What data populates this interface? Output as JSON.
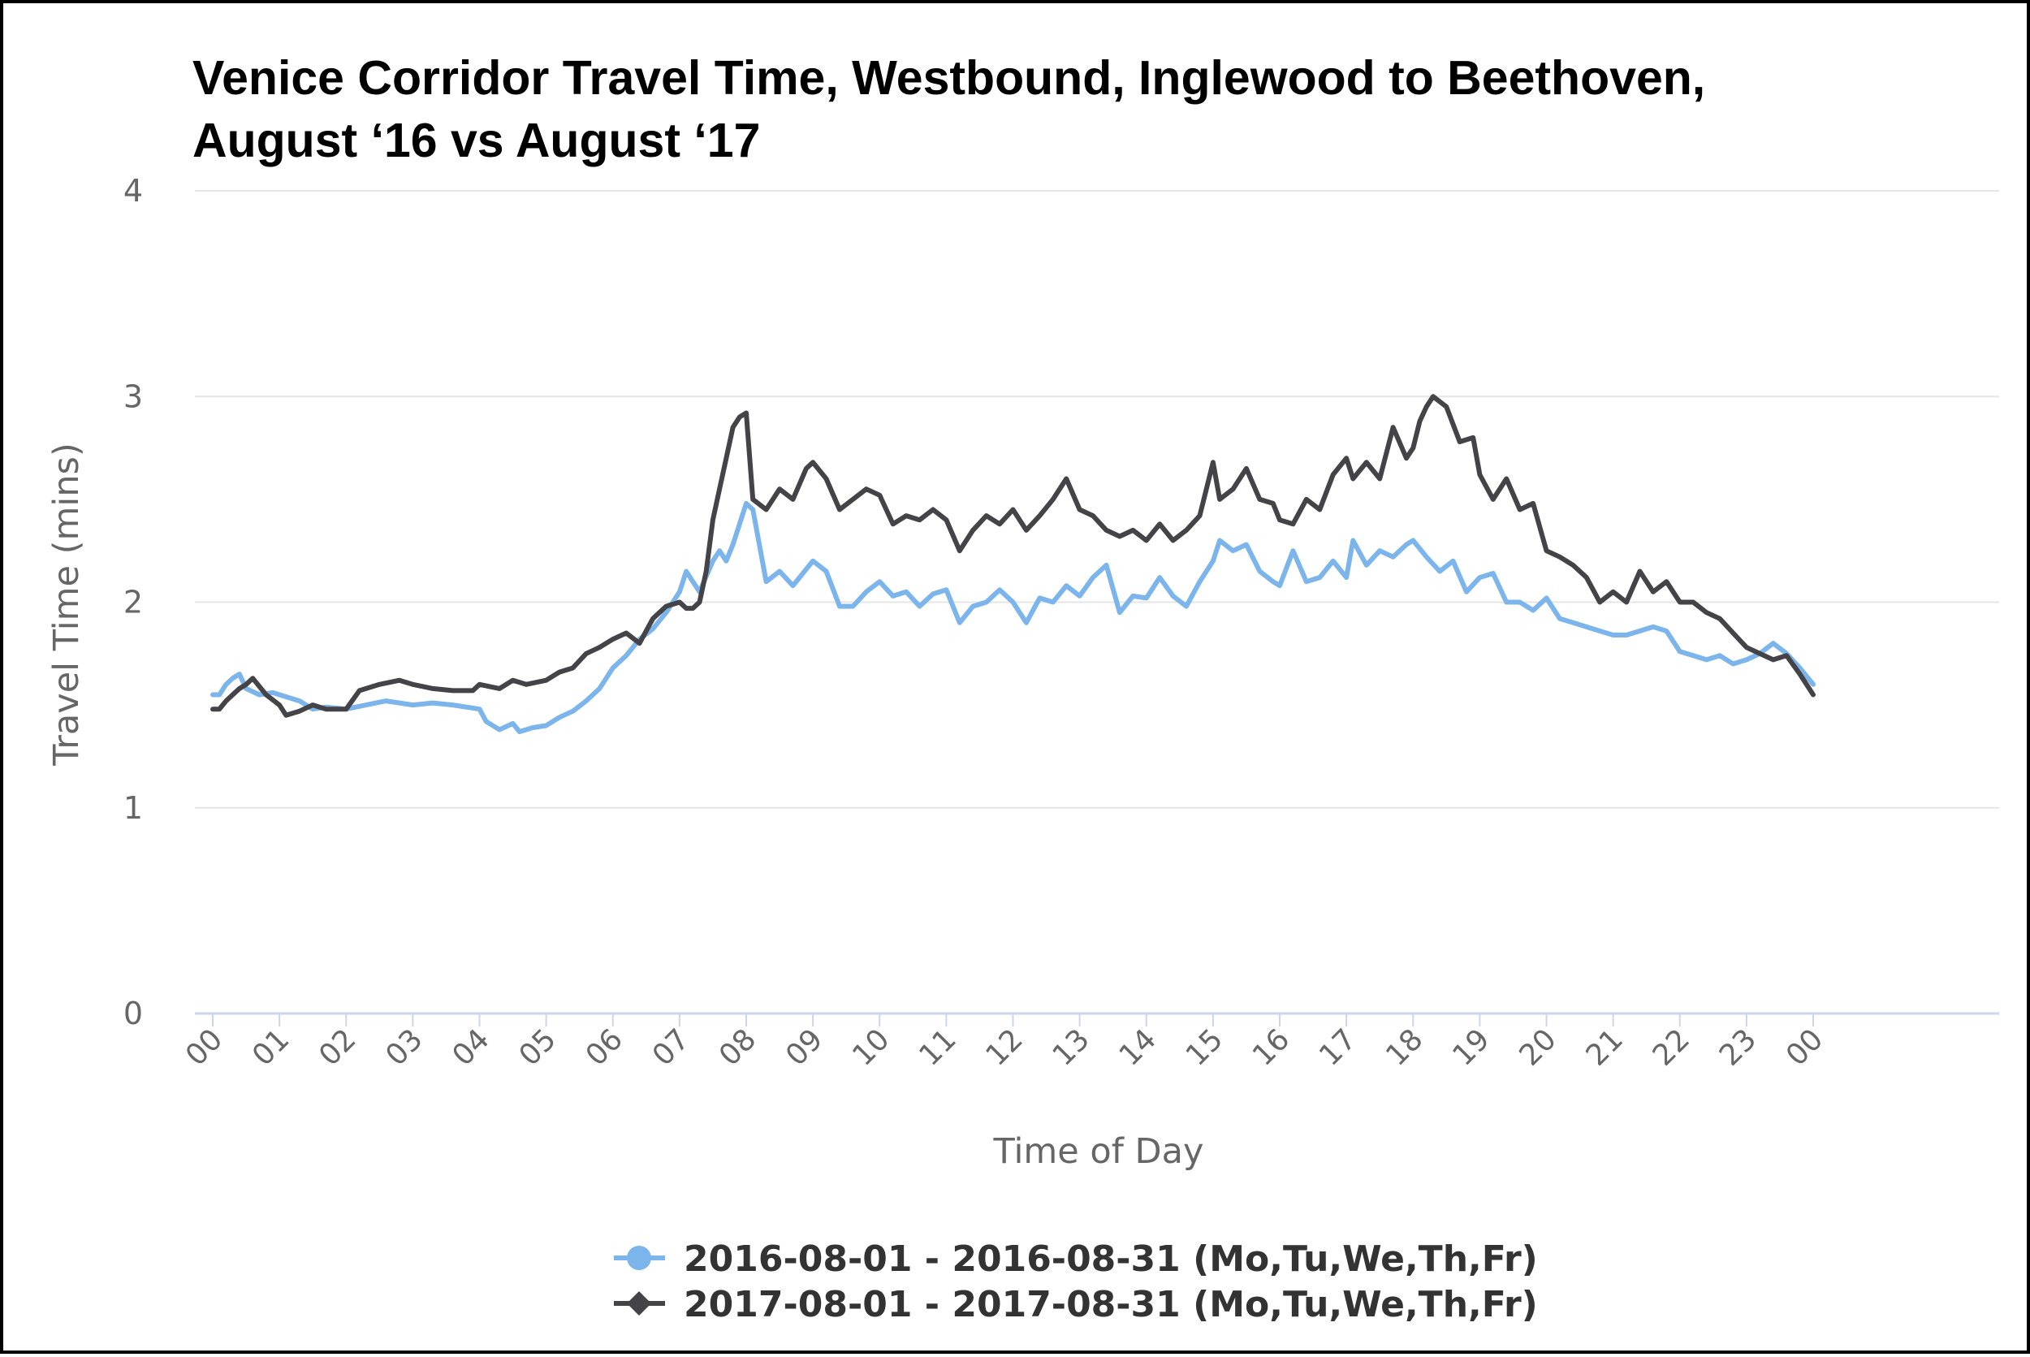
{
  "chart_data": {
    "type": "line",
    "title": "Venice Corridor Travel Time, Westbound, Inglewood to Beethoven,",
    "subtitle": "August ‘16 vs August ‘17",
    "xlabel": "Time of Day",
    "ylabel": "Travel Time (mins)",
    "ylim": [
      0,
      4
    ],
    "yticks": [
      "0",
      "1",
      "2",
      "3",
      "4"
    ],
    "xlim": [
      0,
      24
    ],
    "xticks": [
      "00",
      "01",
      "02",
      "03",
      "04",
      "05",
      "06",
      "07",
      "08",
      "09",
      "10",
      "11",
      "12",
      "13",
      "14",
      "15",
      "16",
      "17",
      "18",
      "19",
      "20",
      "21",
      "22",
      "23",
      "00"
    ],
    "grid": true,
    "legend_position": "bottom",
    "series": [
      {
        "name": "2016-08-01 - 2016-08-31 (Mo,Tu,We,Th,Fr)",
        "color": "#7cb5ec",
        "marker": "circle",
        "x": [
          0,
          0.1,
          0.2,
          0.3,
          0.4,
          0.5,
          0.7,
          0.9,
          1.1,
          1.3,
          1.5,
          1.7,
          2,
          2.3,
          2.6,
          3,
          3.3,
          3.6,
          4,
          4.1,
          4.3,
          4.5,
          4.6,
          4.8,
          5,
          5.2,
          5.4,
          5.6,
          5.8,
          6,
          6.2,
          6.4,
          6.6,
          6.8,
          7,
          7.1,
          7.2,
          7.3,
          7.5,
          7.6,
          7.7,
          7.8,
          7.9,
          8,
          8.1,
          8.3,
          8.5,
          8.7,
          9,
          9.2,
          9.4,
          9.6,
          9.8,
          10,
          10.2,
          10.4,
          10.6,
          10.8,
          11,
          11.2,
          11.4,
          11.6,
          11.8,
          12,
          12.2,
          12.4,
          12.6,
          12.8,
          13,
          13.2,
          13.4,
          13.6,
          13.8,
          14,
          14.2,
          14.4,
          14.6,
          14.8,
          15,
          15.1,
          15.3,
          15.5,
          15.7,
          15.9,
          16,
          16.2,
          16.4,
          16.6,
          16.8,
          17,
          17.1,
          17.3,
          17.5,
          17.7,
          17.9,
          18,
          18.2,
          18.4,
          18.6,
          18.8,
          19,
          19.2,
          19.4,
          19.6,
          19.8,
          20,
          20.2,
          20.4,
          20.6,
          20.8,
          21,
          21.2,
          21.4,
          21.6,
          21.8,
          22,
          22.2,
          22.4,
          22.6,
          22.8,
          23,
          23.2,
          23.4,
          23.6,
          23.8,
          24
        ],
        "y": [
          1.55,
          1.55,
          1.6,
          1.63,
          1.65,
          1.58,
          1.55,
          1.56,
          1.54,
          1.52,
          1.48,
          1.49,
          1.48,
          1.5,
          1.52,
          1.5,
          1.51,
          1.5,
          1.48,
          1.42,
          1.38,
          1.41,
          1.37,
          1.39,
          1.4,
          1.44,
          1.47,
          1.52,
          1.58,
          1.68,
          1.74,
          1.82,
          1.87,
          1.95,
          2.05,
          2.15,
          2.1,
          2.05,
          2.2,
          2.25,
          2.2,
          2.28,
          2.38,
          2.48,
          2.45,
          2.1,
          2.15,
          2.08,
          2.2,
          2.15,
          1.98,
          1.98,
          2.05,
          2.1,
          2.03,
          2.05,
          1.98,
          2.04,
          2.06,
          1.9,
          1.98,
          2.0,
          2.06,
          2.0,
          1.9,
          2.02,
          2.0,
          2.08,
          2.03,
          2.12,
          2.18,
          1.95,
          2.03,
          2.02,
          2.12,
          2.03,
          1.98,
          2.1,
          2.2,
          2.3,
          2.25,
          2.28,
          2.15,
          2.1,
          2.08,
          2.25,
          2.1,
          2.12,
          2.2,
          2.12,
          2.3,
          2.18,
          2.25,
          2.22,
          2.28,
          2.3,
          2.22,
          2.15,
          2.2,
          2.05,
          2.12,
          2.14,
          2.0,
          2.0,
          1.96,
          2.02,
          1.92,
          1.9,
          1.88,
          1.86,
          1.84,
          1.84,
          1.86,
          1.88,
          1.86,
          1.76,
          1.74,
          1.72,
          1.74,
          1.7,
          1.72,
          1.75,
          1.8,
          1.75,
          1.68,
          1.6
        ]
      },
      {
        "name": "2017-08-01 - 2017-08-31 (Mo,Tu,We,Th,Fr)",
        "color": "#434348",
        "marker": "diamond",
        "x": [
          0,
          0.1,
          0.2,
          0.3,
          0.4,
          0.5,
          0.6,
          0.8,
          1,
          1.1,
          1.3,
          1.5,
          1.7,
          2,
          2.2,
          2.5,
          2.8,
          3,
          3.3,
          3.6,
          3.9,
          4,
          4.3,
          4.5,
          4.7,
          5,
          5.2,
          5.4,
          5.6,
          5.8,
          6,
          6.2,
          6.4,
          6.6,
          6.8,
          7,
          7.1,
          7.2,
          7.3,
          7.4,
          7.5,
          7.6,
          7.7,
          7.8,
          7.9,
          8,
          8.1,
          8.3,
          8.5,
          8.7,
          8.9,
          9,
          9.2,
          9.4,
          9.6,
          9.8,
          10,
          10.2,
          10.4,
          10.6,
          10.8,
          11,
          11.2,
          11.4,
          11.6,
          11.8,
          12,
          12.2,
          12.4,
          12.6,
          12.8,
          13,
          13.2,
          13.4,
          13.6,
          13.8,
          14,
          14.2,
          14.4,
          14.6,
          14.8,
          15,
          15.1,
          15.3,
          15.5,
          15.7,
          15.9,
          16,
          16.2,
          16.4,
          16.6,
          16.8,
          17,
          17.1,
          17.3,
          17.5,
          17.7,
          17.9,
          18,
          18.1,
          18.2,
          18.3,
          18.5,
          18.7,
          18.9,
          19,
          19.2,
          19.4,
          19.6,
          19.8,
          20,
          20.2,
          20.4,
          20.6,
          20.8,
          21,
          21.2,
          21.4,
          21.6,
          21.8,
          22,
          22.2,
          22.4,
          22.6,
          22.8,
          23,
          23.2,
          23.4,
          23.6,
          23.8,
          24
        ],
        "y": [
          1.48,
          1.48,
          1.52,
          1.55,
          1.58,
          1.6,
          1.63,
          1.55,
          1.5,
          1.45,
          1.47,
          1.5,
          1.48,
          1.48,
          1.57,
          1.6,
          1.62,
          1.6,
          1.58,
          1.57,
          1.57,
          1.6,
          1.58,
          1.62,
          1.6,
          1.62,
          1.66,
          1.68,
          1.75,
          1.78,
          1.82,
          1.85,
          1.8,
          1.92,
          1.98,
          2.0,
          1.97,
          1.97,
          2.0,
          2.15,
          2.4,
          2.55,
          2.7,
          2.85,
          2.9,
          2.92,
          2.5,
          2.45,
          2.55,
          2.5,
          2.65,
          2.68,
          2.6,
          2.45,
          2.5,
          2.55,
          2.52,
          2.38,
          2.42,
          2.4,
          2.45,
          2.4,
          2.25,
          2.35,
          2.42,
          2.38,
          2.45,
          2.35,
          2.42,
          2.5,
          2.6,
          2.45,
          2.42,
          2.35,
          2.32,
          2.35,
          2.3,
          2.38,
          2.3,
          2.35,
          2.42,
          2.68,
          2.5,
          2.55,
          2.65,
          2.5,
          2.48,
          2.4,
          2.38,
          2.5,
          2.45,
          2.62,
          2.7,
          2.6,
          2.68,
          2.6,
          2.85,
          2.7,
          2.75,
          2.88,
          2.95,
          3.0,
          2.95,
          2.78,
          2.8,
          2.62,
          2.5,
          2.6,
          2.45,
          2.48,
          2.25,
          2.22,
          2.18,
          2.12,
          2.0,
          2.05,
          2.0,
          2.15,
          2.05,
          2.1,
          2.0,
          2.0,
          1.95,
          1.92,
          1.85,
          1.78,
          1.75,
          1.72,
          1.74,
          1.65,
          1.55
        ]
      }
    ]
  }
}
